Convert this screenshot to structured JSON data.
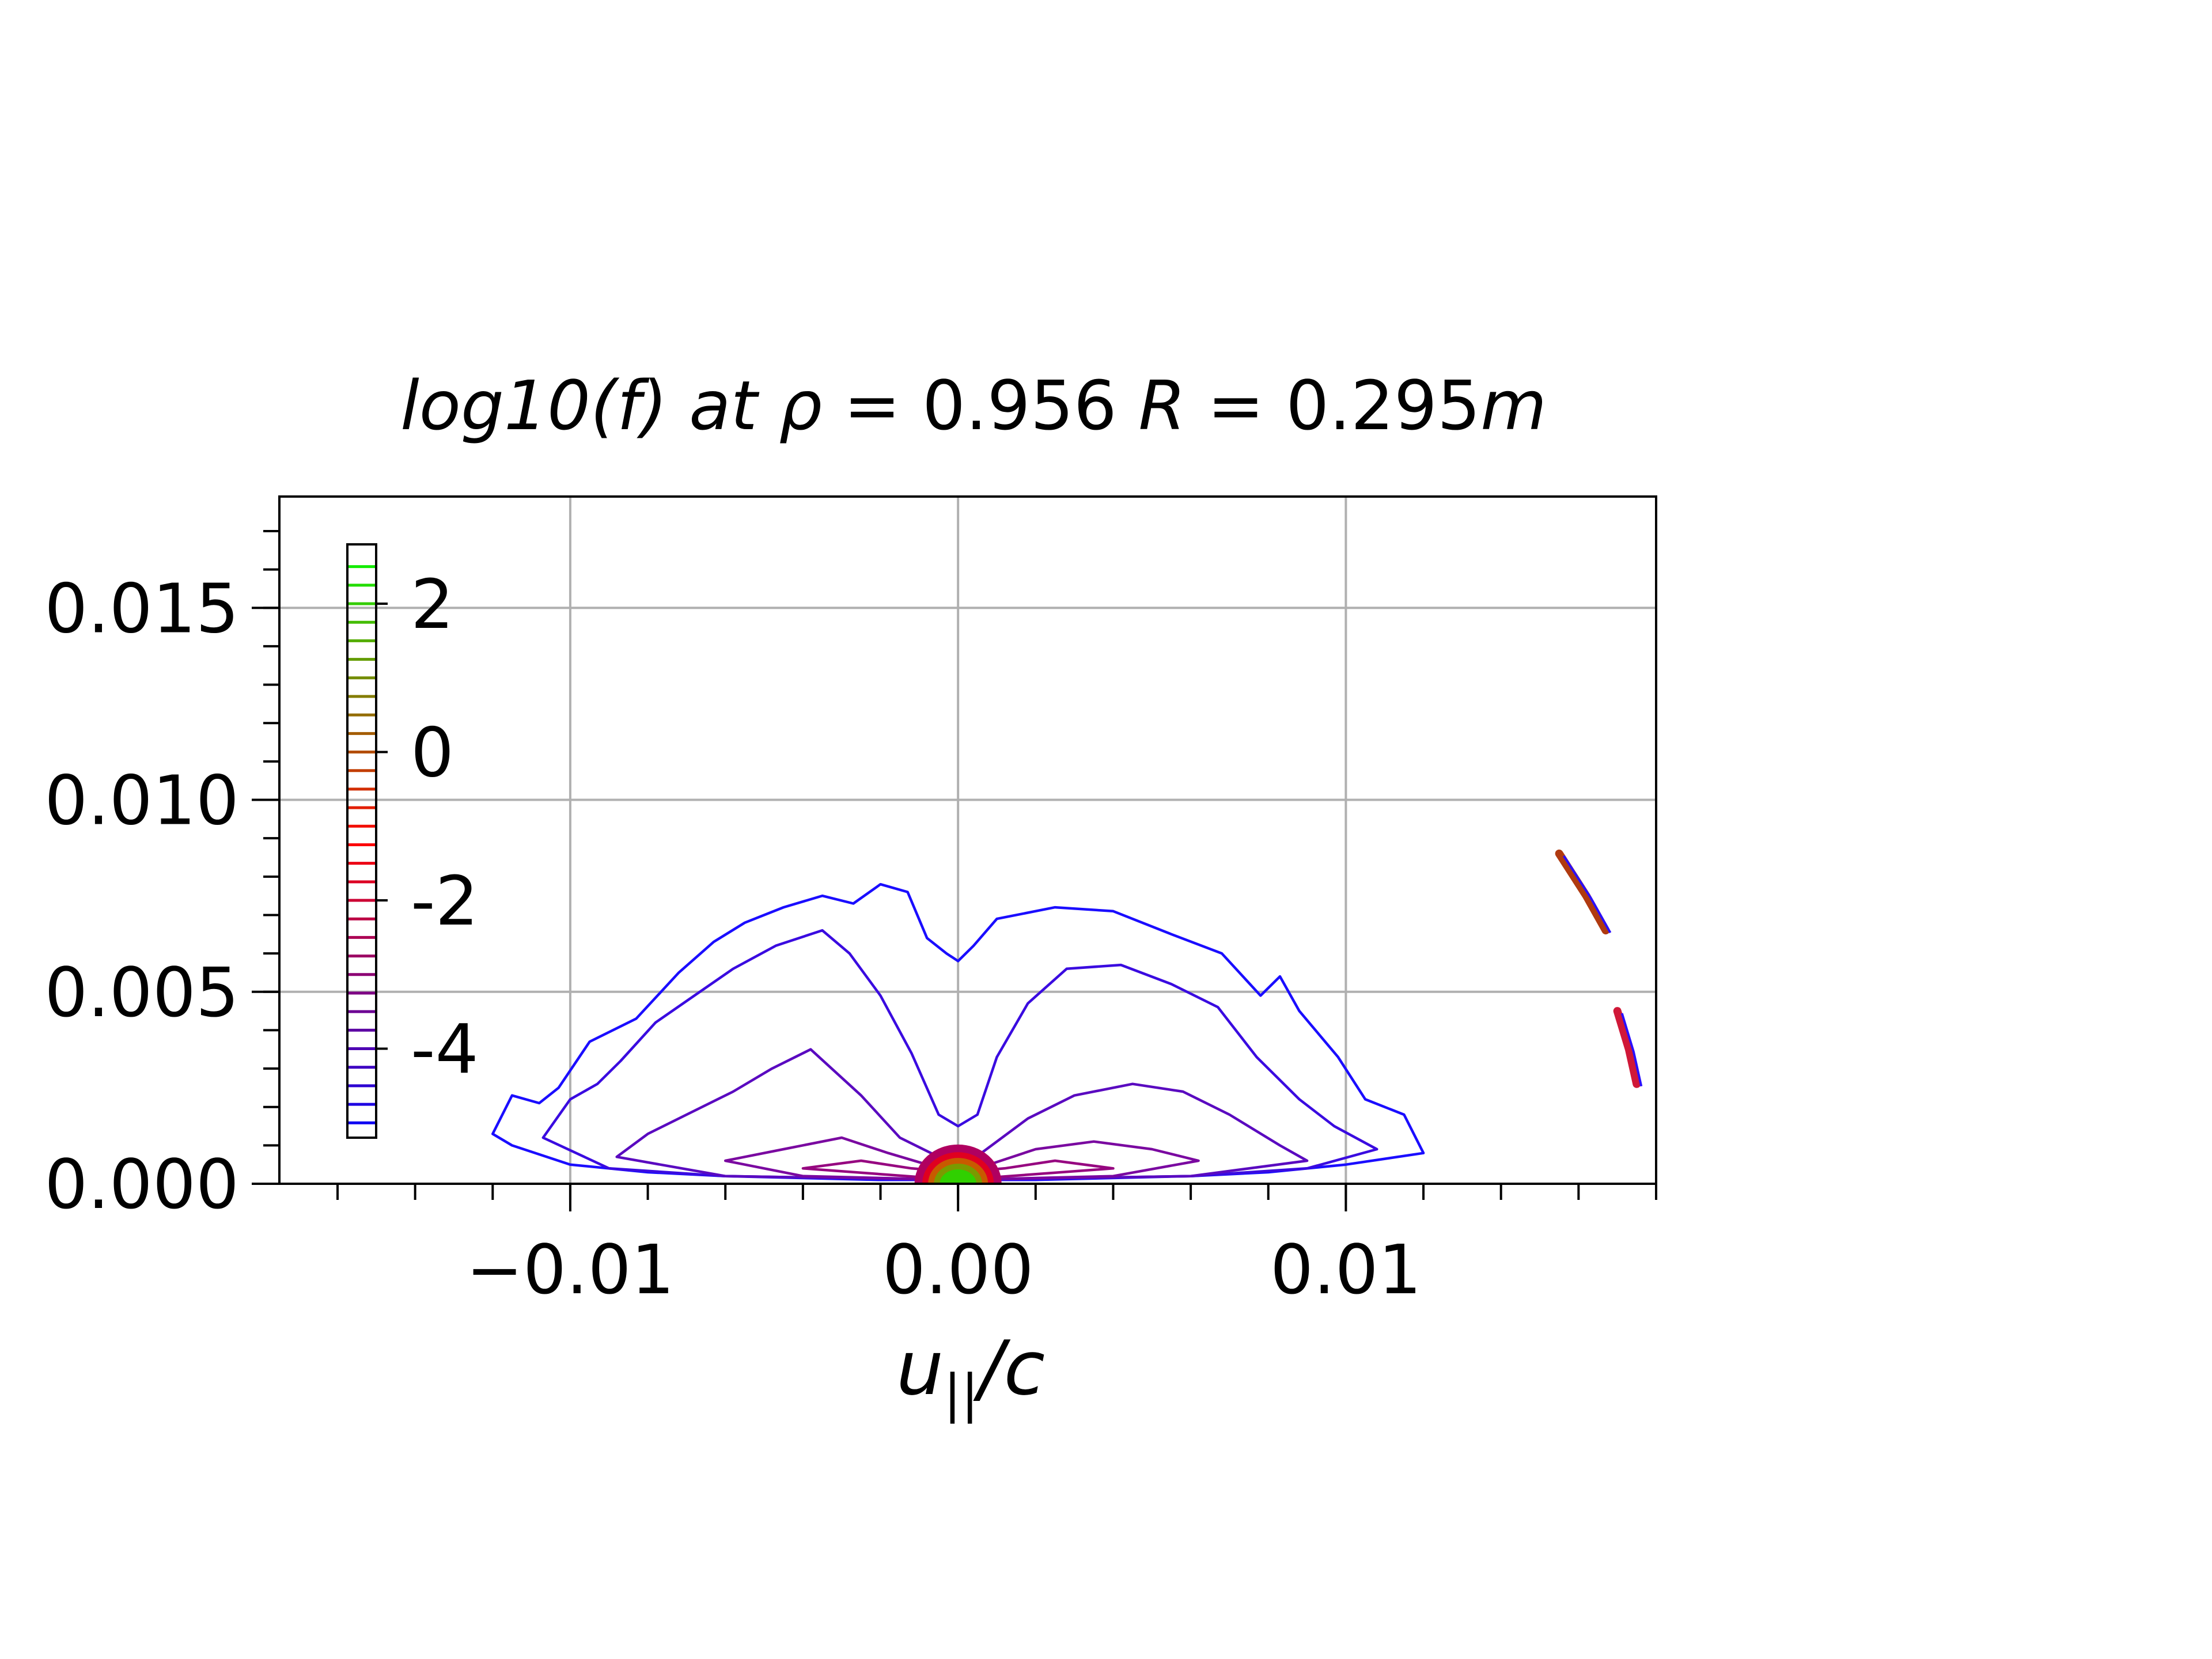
{
  "chart_data": {
    "type": "contour",
    "title": "log10(f) at ρ = 0.956  R = 0.295m",
    "title_parts": {
      "prefix": "log10(f) at ",
      "rho_symbol": "ρ",
      "rho_eq": " = 0.956  ",
      "R_symbol": "R",
      "R_eq": " = 0.295",
      "unit": "m"
    },
    "xlabel": "u||/c",
    "xlabel_parts": {
      "u": "u",
      "sub": "||",
      "rest": "/c"
    },
    "ylabel": "",
    "xlim": [
      -0.0175,
      0.018
    ],
    "ylim": [
      0.0,
      0.0179
    ],
    "grid": true,
    "x_ticks": [
      {
        "value": -0.01,
        "label": "−0.01"
      },
      {
        "value": 0.0,
        "label": "0.00"
      },
      {
        "value": 0.01,
        "label": "0.01"
      }
    ],
    "x_minor_step": 0.002,
    "y_ticks": [
      {
        "value": 0.0,
        "label": "0.000"
      },
      {
        "value": 0.005,
        "label": "0.005"
      },
      {
        "value": 0.01,
        "label": "0.010"
      },
      {
        "value": 0.015,
        "label": "0.015"
      }
    ],
    "y_minor_step": 0.001,
    "colorbar": {
      "placement": "inset-left",
      "min": -5.2,
      "max": 2.8,
      "level_step": 0.25,
      "ticks": [
        {
          "value": 2,
          "label": "2"
        },
        {
          "value": 0,
          "label": "0"
        },
        {
          "value": -2,
          "label": "-2"
        },
        {
          "value": -4,
          "label": "-4"
        }
      ],
      "colormap": "brg"
    },
    "contours": [
      {
        "level": -5.0,
        "color": "#1a0dff",
        "points": [
          [
            -0.012,
            0.0013
          ],
          [
            -0.0115,
            0.0023
          ],
          [
            -0.0108,
            0.0021
          ],
          [
            -0.0103,
            0.0025
          ],
          [
            -0.0095,
            0.0037
          ],
          [
            -0.0083,
            0.0043
          ],
          [
            -0.0072,
            0.0055
          ],
          [
            -0.0063,
            0.0063
          ],
          [
            -0.0055,
            0.0068
          ],
          [
            -0.0045,
            0.0072
          ],
          [
            -0.0035,
            0.0075
          ],
          [
            -0.0027,
            0.0073
          ],
          [
            -0.002,
            0.0078
          ],
          [
            -0.0013,
            0.0076
          ],
          [
            -0.0008,
            0.0064
          ],
          [
            -0.0003,
            0.006
          ],
          [
            0.0,
            0.0058
          ],
          [
            0.0004,
            0.0062
          ],
          [
            0.001,
            0.0069
          ],
          [
            0.0025,
            0.0072
          ],
          [
            0.004,
            0.0071
          ],
          [
            0.0055,
            0.0065
          ],
          [
            0.0068,
            0.006
          ],
          [
            0.0078,
            0.0049
          ],
          [
            0.0083,
            0.0054
          ],
          [
            0.0088,
            0.0045
          ],
          [
            0.0098,
            0.0033
          ],
          [
            0.0105,
            0.0022
          ],
          [
            0.0115,
            0.0018
          ],
          [
            0.012,
            0.0008
          ],
          [
            0.01,
            0.0005
          ],
          [
            0.008,
            0.0003
          ],
          [
            0.006,
            0.0002
          ],
          [
            0.002,
            0.0001
          ],
          [
            0.0,
            0.0001
          ],
          [
            -0.002,
            0.0001
          ],
          [
            -0.006,
            0.0002
          ],
          [
            -0.008,
            0.0003
          ],
          [
            -0.01,
            0.0005
          ],
          [
            -0.0115,
            0.001
          ],
          [
            -0.012,
            0.0013
          ]
        ],
        "closed": true
      },
      {
        "level": -4.5,
        "color": "#3a0be0",
        "points": [
          [
            -0.0107,
            0.0012
          ],
          [
            -0.01,
            0.0022
          ],
          [
            -0.0093,
            0.0026
          ],
          [
            -0.0087,
            0.0032
          ],
          [
            -0.0078,
            0.0042
          ],
          [
            -0.0068,
            0.0049
          ],
          [
            -0.0058,
            0.0056
          ],
          [
            -0.0047,
            0.0062
          ],
          [
            -0.0035,
            0.0066
          ],
          [
            -0.0028,
            0.006
          ],
          [
            -0.002,
            0.0049
          ],
          [
            -0.0012,
            0.0034
          ],
          [
            -0.0005,
            0.0018
          ],
          [
            0.0,
            0.0015
          ],
          [
            0.0005,
            0.0018
          ],
          [
            0.001,
            0.0033
          ],
          [
            0.0018,
            0.0047
          ],
          [
            0.0028,
            0.0056
          ],
          [
            0.0042,
            0.0057
          ],
          [
            0.0055,
            0.0052
          ],
          [
            0.0067,
            0.0046
          ],
          [
            0.0077,
            0.0033
          ],
          [
            0.0088,
            0.0022
          ],
          [
            0.0097,
            0.0015
          ],
          [
            0.0108,
            0.0009
          ],
          [
            0.009,
            0.0004
          ],
          [
            0.006,
            0.0002
          ],
          [
            0.0,
            0.0001
          ],
          [
            -0.006,
            0.0002
          ],
          [
            -0.009,
            0.0004
          ],
          [
            -0.0107,
            0.0012
          ]
        ],
        "closed": true
      },
      {
        "level": -4.0,
        "color": "#5a0ac0",
        "points": [
          [
            -0.0088,
            0.0007
          ],
          [
            -0.008,
            0.0013
          ],
          [
            -0.007,
            0.0018
          ],
          [
            -0.0058,
            0.0024
          ],
          [
            -0.0048,
            0.003
          ],
          [
            -0.0038,
            0.0035
          ],
          [
            -0.0025,
            0.0023
          ],
          [
            -0.0015,
            0.0012
          ],
          [
            -0.0005,
            0.0007
          ],
          [
            0.0,
            0.0006
          ],
          [
            0.0006,
            0.0008
          ],
          [
            0.0018,
            0.0017
          ],
          [
            0.003,
            0.0023
          ],
          [
            0.0045,
            0.0026
          ],
          [
            0.0058,
            0.0024
          ],
          [
            0.007,
            0.0018
          ],
          [
            0.0083,
            0.001
          ],
          [
            0.009,
            0.0006
          ],
          [
            0.006,
            0.0002
          ],
          [
            0.0,
            0.0001
          ],
          [
            -0.006,
            0.0002
          ],
          [
            -0.0088,
            0.0007
          ]
        ],
        "closed": true
      },
      {
        "level": -3.5,
        "color": "#7a08a0",
        "points": [
          [
            -0.006,
            0.0006
          ],
          [
            -0.0045,
            0.0009
          ],
          [
            -0.003,
            0.0012
          ],
          [
            -0.0018,
            0.0008
          ],
          [
            -0.0008,
            0.0005
          ],
          [
            0.0,
            0.0004
          ],
          [
            0.0008,
            0.0005
          ],
          [
            0.002,
            0.0009
          ],
          [
            0.0035,
            0.0011
          ],
          [
            0.005,
            0.0009
          ],
          [
            0.0062,
            0.0006
          ],
          [
            0.004,
            0.0002
          ],
          [
            0.0,
            0.0001
          ],
          [
            -0.004,
            0.0002
          ],
          [
            -0.006,
            0.0006
          ]
        ],
        "closed": true
      },
      {
        "level": -3.0,
        "color": "#960680",
        "points": [
          [
            -0.004,
            0.0004
          ],
          [
            -0.0025,
            0.0006
          ],
          [
            -0.0012,
            0.0004
          ],
          [
            0.0,
            0.0003
          ],
          [
            0.0012,
            0.0004
          ],
          [
            0.0025,
            0.0006
          ],
          [
            0.004,
            0.0004
          ],
          [
            0.0,
            0.0001
          ],
          [
            -0.004,
            0.0004
          ]
        ],
        "closed": true
      },
      {
        "level": 0.0,
        "color": "#b03a10",
        "points": [
          [
            0.0155,
            0.0086
          ],
          [
            0.0162,
            0.0075
          ],
          [
            0.0167,
            0.0066
          ]
        ],
        "closed": false
      },
      {
        "level": -1.0,
        "color": "#d01838",
        "points": [
          [
            0.017,
            0.0045
          ],
          [
            0.0173,
            0.0035
          ],
          [
            0.0175,
            0.0026
          ]
        ],
        "closed": false
      }
    ],
    "core_blob": {
      "center": [
        0.0,
        0.0
      ],
      "levels": [
        {
          "value": -2.0,
          "color": "#b00060",
          "radius_x": 0.0011,
          "radius_y": 0.001
        },
        {
          "value": -1.0,
          "color": "#e00020",
          "radius_x": 0.0009,
          "radius_y": 0.0008
        },
        {
          "value": 0.0,
          "color": "#c85a00",
          "radius_x": 0.00075,
          "radius_y": 0.00065
        },
        {
          "value": 1.0,
          "color": "#7a9a00",
          "radius_x": 0.0006,
          "radius_y": 0.0005
        },
        {
          "value": 2.0,
          "color": "#30d000",
          "radius_x": 0.00045,
          "radius_y": 0.00035
        }
      ]
    }
  }
}
